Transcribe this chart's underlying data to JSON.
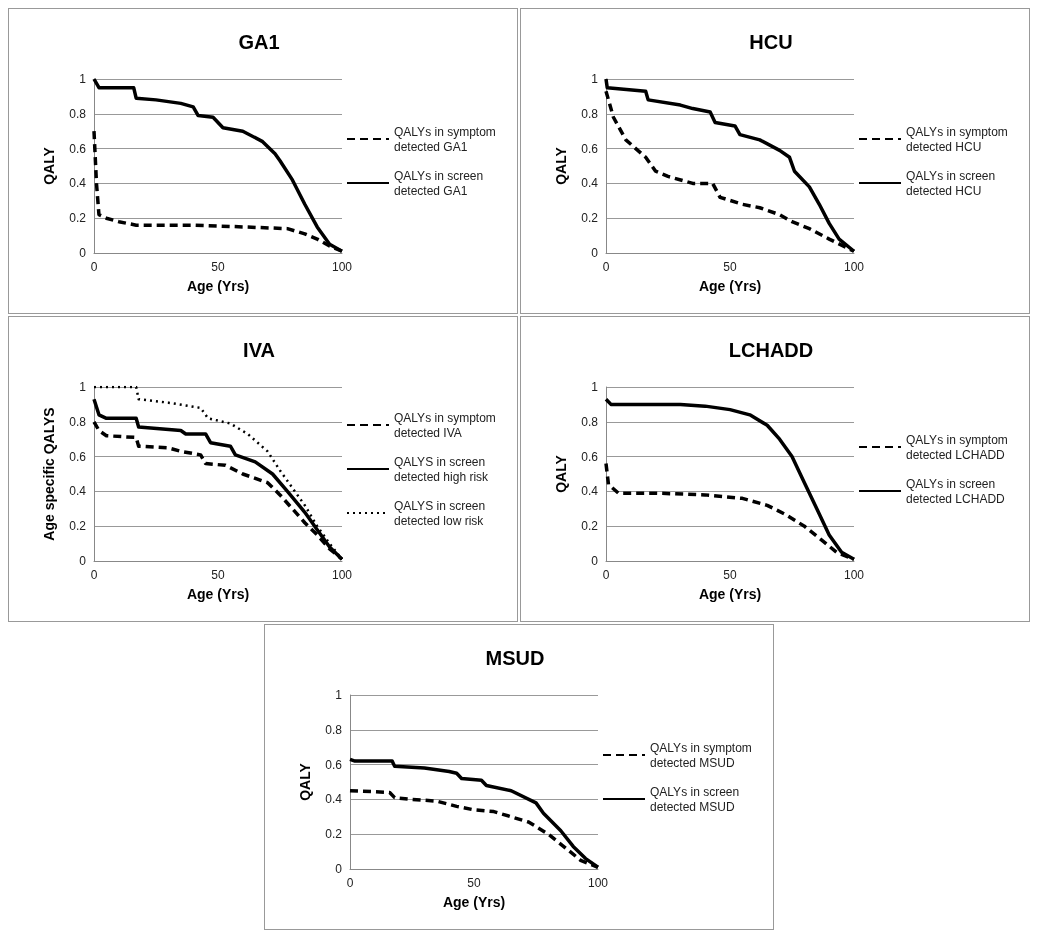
{
  "chart_data": [
    {
      "type": "line",
      "title": "GA1",
      "xlabel": "Age (Yrs)",
      "ylabel": "QALY",
      "xlim": [
        0,
        100
      ],
      "xticks": [
        0,
        50,
        100
      ],
      "ylim": [
        0,
        1
      ],
      "yticks": [
        0,
        0.2,
        0.4,
        0.6,
        0.8,
        1
      ],
      "grid": "y",
      "legend": "right",
      "series": [
        {
          "name": "QALYs in symptom detected GA1",
          "color": "#000000",
          "line_style": "dashed",
          "x": [
            0,
            1,
            2,
            5,
            10,
            17,
            40,
            60,
            78,
            85,
            90,
            95,
            100
          ],
          "values": [
            0.7,
            0.4,
            0.22,
            0.2,
            0.18,
            0.16,
            0.16,
            0.15,
            0.14,
            0.11,
            0.08,
            0.04,
            0.01
          ]
        },
        {
          "name": "QALYs in screen detected GA1",
          "color": "#000000",
          "line_style": "solid",
          "x": [
            0,
            2,
            16,
            17,
            25,
            35,
            40,
            42,
            48,
            52,
            60,
            68,
            73,
            75,
            80,
            85,
            90,
            95,
            100
          ],
          "values": [
            1.0,
            0.95,
            0.95,
            0.89,
            0.88,
            0.86,
            0.84,
            0.79,
            0.78,
            0.72,
            0.7,
            0.64,
            0.57,
            0.53,
            0.42,
            0.28,
            0.15,
            0.05,
            0.01
          ]
        }
      ]
    },
    {
      "type": "line",
      "title": "HCU",
      "xlabel": "Age (Yrs)",
      "ylabel": "QALY",
      "xlim": [
        0,
        100
      ],
      "xticks": [
        0,
        50,
        100
      ],
      "ylim": [
        0,
        1
      ],
      "yticks": [
        0,
        0.2,
        0.4,
        0.6,
        0.8,
        1
      ],
      "grid": "y",
      "legend": "right",
      "series": [
        {
          "name": "QALYs in symptom detected HCU",
          "color": "#000000",
          "line_style": "dashed",
          "x": [
            0,
            3,
            8,
            16,
            20,
            25,
            35,
            43,
            46,
            55,
            62,
            70,
            75,
            82,
            90,
            100
          ],
          "values": [
            0.93,
            0.78,
            0.65,
            0.55,
            0.47,
            0.44,
            0.4,
            0.4,
            0.32,
            0.28,
            0.26,
            0.22,
            0.18,
            0.14,
            0.08,
            0.01
          ]
        },
        {
          "name": "QALYs in screen detected HCU",
          "color": "#000000",
          "line_style": "solid",
          "x": [
            0,
            0.5,
            16,
            17,
            30,
            35,
            42,
            44,
            52,
            54,
            62,
            70,
            74,
            76,
            82,
            86,
            90,
            94,
            100
          ],
          "values": [
            1.0,
            0.95,
            0.93,
            0.88,
            0.85,
            0.83,
            0.81,
            0.75,
            0.73,
            0.68,
            0.65,
            0.59,
            0.55,
            0.47,
            0.38,
            0.28,
            0.17,
            0.08,
            0.01
          ]
        }
      ]
    },
    {
      "type": "line",
      "title": "IVA",
      "xlabel": "Age (Yrs)",
      "ylabel": "Age specific QALYS",
      "xlim": [
        0,
        100
      ],
      "xticks": [
        0,
        50,
        100
      ],
      "ylim": [
        0,
        1
      ],
      "yticks": [
        0,
        0.2,
        0.4,
        0.6,
        0.8,
        1
      ],
      "grid": "y",
      "legend": "right",
      "series": [
        {
          "name": "QALYs in symptom detected IVA",
          "color": "#000000",
          "line_style": "dashed",
          "x": [
            0,
            2,
            5,
            17,
            18,
            30,
            35,
            43,
            45,
            53,
            60,
            70,
            75,
            80,
            85,
            90,
            95,
            100
          ],
          "values": [
            0.8,
            0.75,
            0.72,
            0.71,
            0.66,
            0.65,
            0.63,
            0.61,
            0.56,
            0.55,
            0.5,
            0.45,
            0.38,
            0.3,
            0.22,
            0.15,
            0.07,
            0.01
          ]
        },
        {
          "name": "QALYS in screen detected high risk",
          "color": "#000000",
          "line_style": "solid",
          "x": [
            0,
            2,
            5,
            17,
            18,
            35,
            37,
            45,
            47,
            55,
            57,
            65,
            72,
            78,
            85,
            90,
            95,
            100
          ],
          "values": [
            0.93,
            0.84,
            0.82,
            0.82,
            0.77,
            0.75,
            0.73,
            0.73,
            0.68,
            0.66,
            0.61,
            0.57,
            0.5,
            0.4,
            0.28,
            0.18,
            0.08,
            0.01
          ]
        },
        {
          "name": "QALYS in screen detected low risk",
          "color": "#000000",
          "line_style": "dotted",
          "x": [
            0,
            17,
            18,
            30,
            43,
            46,
            55,
            62,
            70,
            75,
            80,
            85,
            90,
            95,
            100
          ],
          "values": [
            1.0,
            1.0,
            0.93,
            0.91,
            0.88,
            0.82,
            0.79,
            0.73,
            0.63,
            0.52,
            0.42,
            0.32,
            0.2,
            0.1,
            0.01
          ]
        }
      ]
    },
    {
      "type": "line",
      "title": "LCHADD",
      "xlabel": "Age (Yrs)",
      "ylabel": "QALY",
      "xlim": [
        0,
        100
      ],
      "xticks": [
        0,
        50,
        100
      ],
      "ylim": [
        0,
        1
      ],
      "yticks": [
        0,
        0.2,
        0.4,
        0.6,
        0.8,
        1
      ],
      "grid": "y",
      "legend": "right",
      "series": [
        {
          "name": "QALYs in symptom detected LCHADD",
          "color": "#000000",
          "line_style": "dashed",
          "x": [
            0,
            1,
            5,
            20,
            40,
            55,
            65,
            72,
            80,
            87,
            93,
            100
          ],
          "values": [
            0.56,
            0.44,
            0.39,
            0.39,
            0.38,
            0.36,
            0.32,
            0.27,
            0.2,
            0.12,
            0.05,
            0.01
          ]
        },
        {
          "name": "QALYs in screen detected LCHADD",
          "color": "#000000",
          "line_style": "solid",
          "x": [
            0,
            2,
            30,
            40,
            50,
            58,
            65,
            70,
            75,
            80,
            85,
            90,
            95,
            100
          ],
          "values": [
            0.93,
            0.9,
            0.9,
            0.89,
            0.87,
            0.84,
            0.78,
            0.7,
            0.6,
            0.45,
            0.3,
            0.15,
            0.05,
            0.01
          ]
        }
      ]
    },
    {
      "type": "line",
      "title": "MSUD",
      "xlabel": "Age (Yrs)",
      "ylabel": "QALY",
      "xlim": [
        0,
        100
      ],
      "xticks": [
        0,
        50,
        100
      ],
      "ylim": [
        0,
        1
      ],
      "yticks": [
        0,
        0.2,
        0.4,
        0.6,
        0.8,
        1
      ],
      "grid": "y",
      "legend": "right",
      "series": [
        {
          "name": "QALYs in symptom detected MSUD",
          "color": "#000000",
          "line_style": "dashed",
          "x": [
            0,
            16,
            18,
            25,
            35,
            43,
            50,
            58,
            65,
            72,
            80,
            87,
            93,
            100
          ],
          "values": [
            0.45,
            0.44,
            0.41,
            0.4,
            0.39,
            0.36,
            0.34,
            0.33,
            0.3,
            0.27,
            0.2,
            0.12,
            0.05,
            0.01
          ]
        },
        {
          "name": "QALYs in screen detected MSUD",
          "color": "#000000",
          "line_style": "solid",
          "x": [
            0,
            2,
            17,
            18,
            30,
            40,
            43,
            45,
            53,
            55,
            65,
            75,
            78,
            85,
            90,
            95,
            100
          ],
          "values": [
            0.63,
            0.62,
            0.62,
            0.59,
            0.58,
            0.56,
            0.55,
            0.52,
            0.51,
            0.48,
            0.45,
            0.38,
            0.32,
            0.22,
            0.13,
            0.06,
            0.01
          ]
        }
      ]
    }
  ]
}
